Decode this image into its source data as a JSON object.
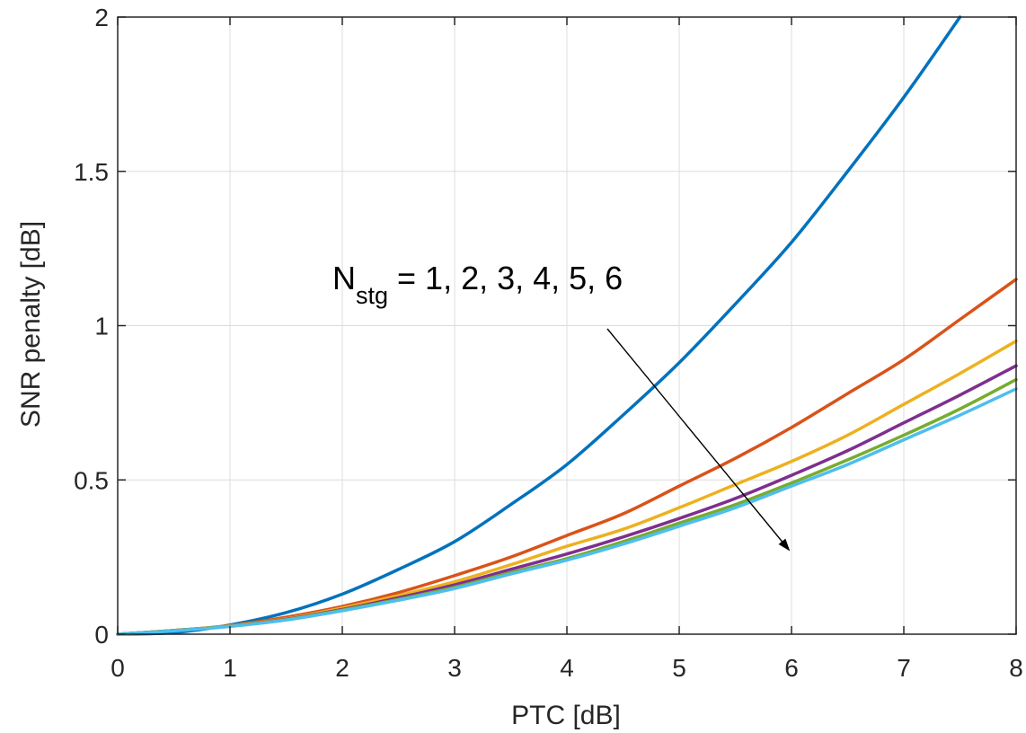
{
  "chart_data": {
    "type": "line",
    "title": "",
    "xlabel": "PTC [dB]",
    "ylabel": "SNR penalty [dB]",
    "xlim": [
      0,
      8
    ],
    "ylim": [
      0,
      2
    ],
    "xticks": [
      "0",
      "1",
      "2",
      "3",
      "4",
      "5",
      "6",
      "7",
      "8"
    ],
    "yticks": [
      "0",
      "0.5",
      "1",
      "1.5",
      "2"
    ],
    "grid": true,
    "legend": "none",
    "annotation": {
      "main": "N",
      "subscript": "stg",
      "rest": " = 1, 2, 3, 4, 5, 6"
    },
    "series": [
      {
        "color": "#0072BD",
        "x": [
          0,
          0.5,
          1,
          1.5,
          2,
          2.5,
          3,
          3.5,
          4,
          4.5,
          5,
          5.5,
          6,
          6.5,
          7,
          7.5
        ],
        "y": [
          0,
          0.005,
          0.03,
          0.07,
          0.13,
          0.21,
          0.3,
          0.42,
          0.55,
          0.71,
          0.88,
          1.07,
          1.27,
          1.5,
          1.74,
          2.0
        ]
      },
      {
        "color": "#D95319",
        "x": [
          0,
          0.5,
          1,
          1.5,
          2,
          2.5,
          3,
          3.5,
          4,
          4.5,
          5,
          5.5,
          6,
          6.5,
          7,
          7.5,
          8
        ],
        "y": [
          0,
          0.012,
          0.028,
          0.055,
          0.09,
          0.135,
          0.19,
          0.25,
          0.32,
          0.39,
          0.48,
          0.57,
          0.67,
          0.78,
          0.89,
          1.02,
          1.15
        ]
      },
      {
        "color": "#EDB120",
        "x": [
          0,
          0.5,
          1,
          1.5,
          2,
          2.5,
          3,
          3.5,
          4,
          4.5,
          5,
          5.5,
          6,
          6.5,
          7,
          7.5,
          8
        ],
        "y": [
          0,
          0.012,
          0.027,
          0.05,
          0.085,
          0.125,
          0.17,
          0.225,
          0.285,
          0.34,
          0.41,
          0.485,
          0.56,
          0.645,
          0.745,
          0.845,
          0.95
        ]
      },
      {
        "color": "#7E2F8E",
        "x": [
          0,
          0.5,
          1,
          1.5,
          2,
          2.5,
          3,
          3.5,
          4,
          4.5,
          5,
          5.5,
          6,
          6.5,
          7,
          7.5,
          8
        ],
        "y": [
          0,
          0.012,
          0.026,
          0.048,
          0.08,
          0.118,
          0.16,
          0.21,
          0.26,
          0.315,
          0.375,
          0.44,
          0.515,
          0.595,
          0.685,
          0.775,
          0.87
        ]
      },
      {
        "color": "#77AC30",
        "x": [
          0,
          0.5,
          1,
          1.5,
          2,
          2.5,
          3,
          3.5,
          4,
          4.5,
          5,
          5.5,
          6,
          6.5,
          7,
          7.5,
          8
        ],
        "y": [
          0,
          0.012,
          0.026,
          0.047,
          0.078,
          0.113,
          0.152,
          0.2,
          0.245,
          0.3,
          0.36,
          0.42,
          0.49,
          0.565,
          0.645,
          0.73,
          0.825
        ]
      },
      {
        "color": "#4DBEEE",
        "x": [
          0,
          0.5,
          1,
          1.5,
          2,
          2.5,
          3,
          3.5,
          4,
          4.5,
          5,
          5.5,
          6,
          6.5,
          7,
          7.5,
          8
        ],
        "y": [
          0,
          0.011,
          0.025,
          0.046,
          0.076,
          0.11,
          0.148,
          0.195,
          0.24,
          0.292,
          0.35,
          0.41,
          0.48,
          0.55,
          0.63,
          0.71,
          0.795
        ]
      }
    ]
  }
}
